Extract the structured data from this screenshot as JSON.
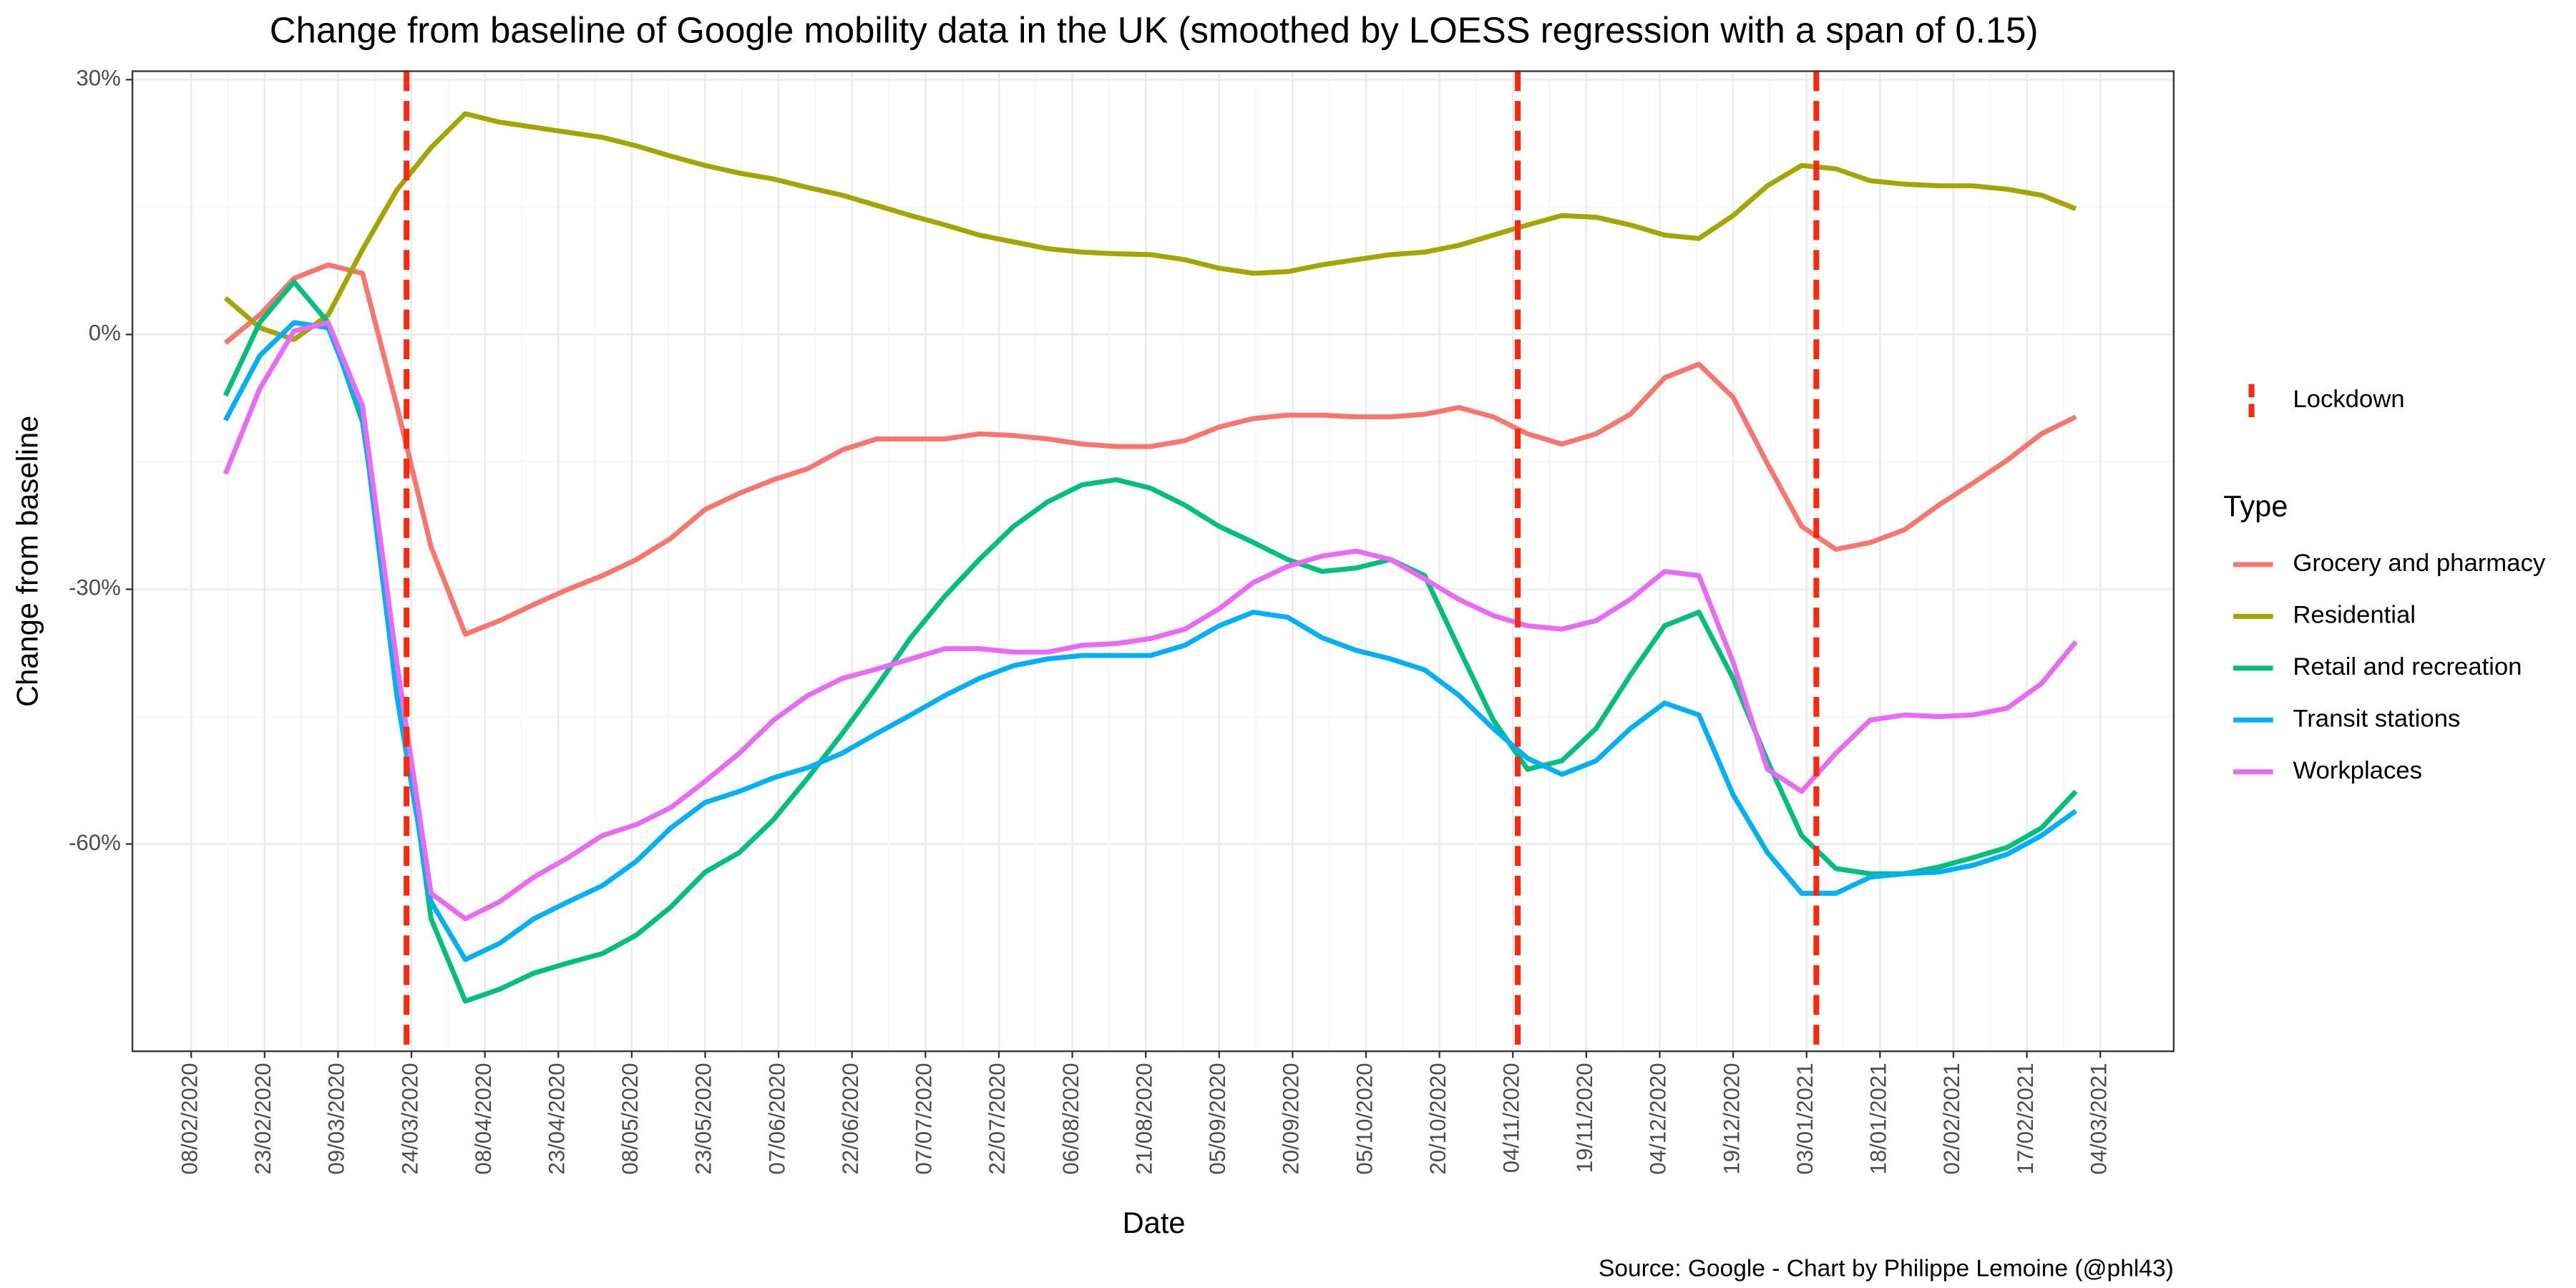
{
  "chart_data": {
    "type": "line",
    "title": "Change from baseline of Google mobility data in the UK (smoothed by LOESS regression with a span of 0.15)",
    "x_label": "Date",
    "y_label": "Change from baseline",
    "legend_title": "Type",
    "source": "Source: Google - Chart by Philippe Lemoine (@phl43)",
    "grid": true,
    "legend_position": "right",
    "x": [
      "15/02/2020",
      "22/02/2020",
      "29/02/2020",
      "07/03/2020",
      "14/03/2020",
      "21/03/2020",
      "28/03/2020",
      "04/04/2020",
      "11/04/2020",
      "18/04/2020",
      "25/04/2020",
      "02/05/2020",
      "09/05/2020",
      "16/05/2020",
      "23/05/2020",
      "30/05/2020",
      "06/06/2020",
      "13/06/2020",
      "20/06/2020",
      "27/06/2020",
      "04/07/2020",
      "11/07/2020",
      "18/07/2020",
      "25/07/2020",
      "01/08/2020",
      "08/08/2020",
      "15/08/2020",
      "22/08/2020",
      "29/08/2020",
      "05/09/2020",
      "12/09/2020",
      "19/09/2020",
      "26/09/2020",
      "03/10/2020",
      "10/10/2020",
      "17/10/2020",
      "24/10/2020",
      "31/10/2020",
      "07/11/2020",
      "14/11/2020",
      "21/11/2020",
      "28/11/2020",
      "05/12/2020",
      "12/12/2020",
      "19/12/2020",
      "26/12/2020",
      "02/01/2021",
      "09/01/2021",
      "16/01/2021",
      "23/01/2021",
      "30/01/2021",
      "06/02/2021",
      "13/02/2021",
      "20/02/2021",
      "27/02/2021"
    ],
    "xlim": [
      "27/01/2020",
      "19/03/2021"
    ],
    "xticks": [
      "08/02/2020",
      "23/02/2020",
      "09/03/2020",
      "24/03/2020",
      "08/04/2020",
      "23/04/2020",
      "08/05/2020",
      "23/05/2020",
      "07/06/2020",
      "22/06/2020",
      "07/07/2020",
      "22/07/2020",
      "06/08/2020",
      "21/08/2020",
      "05/09/2020",
      "20/09/2020",
      "05/10/2020",
      "20/10/2020",
      "04/11/2020",
      "19/11/2020",
      "04/12/2020",
      "19/12/2020",
      "03/01/2021",
      "18/01/2021",
      "02/02/2021",
      "17/02/2021",
      "04/03/2021"
    ],
    "ylim": [
      -84.4,
      31
    ],
    "yticks": [
      {
        "value": -60,
        "label": "-60%"
      },
      {
        "value": -30,
        "label": "-30%"
      },
      {
        "value": 0,
        "label": "0%"
      },
      {
        "value": 30,
        "label": "30%"
      }
    ],
    "lockdown": {
      "name": "Lockdown",
      "color": "#f8290e",
      "x": [
        "23/03/2020",
        "05/11/2020",
        "05/01/2021"
      ]
    },
    "series": [
      {
        "name": "Grocery and pharmacy",
        "color": "#f8766d",
        "values": [
          -1,
          2.3,
          6.6,
          8.2,
          7.2,
          -8.4,
          -25,
          -35.3,
          -33.7,
          -31.8,
          -30,
          -28.4,
          -26.5,
          -24,
          -20.6,
          -18.7,
          -17.1,
          -15.8,
          -13.6,
          -12.3,
          -12.3,
          -12.3,
          -11.7,
          -11.9,
          -12.3,
          -12.9,
          -13.2,
          -13.2,
          -12.5,
          -10.9,
          -9.9,
          -9.5,
          -9.5,
          -9.7,
          -9.7,
          -9.4,
          -8.6,
          -9.7,
          -11.7,
          -12.9,
          -11.7,
          -9.4,
          -5.1,
          -3.5,
          -7.4,
          -15.2,
          -22.6,
          -25.3,
          -24.5,
          -23,
          -20.1,
          -17.5,
          -14.8,
          -11.7,
          -9.7
        ]
      },
      {
        "name": "Residential",
        "color": "#a3a500",
        "values": [
          4.3,
          0.8,
          -0.6,
          2.3,
          10,
          17,
          22,
          26,
          25,
          24.4,
          23.8,
          23.2,
          22.2,
          21,
          19.9,
          19,
          18.3,
          17.3,
          16.4,
          15.2,
          14,
          12.9,
          11.7,
          10.9,
          10.1,
          9.7,
          9.5,
          9.4,
          8.8,
          7.8,
          7.2,
          7.4,
          8.2,
          8.8,
          9.4,
          9.7,
          10.5,
          11.7,
          12.9,
          14,
          13.8,
          12.9,
          11.7,
          11.3,
          14,
          17.5,
          19.9,
          19.5,
          18.1,
          17.7,
          17.5,
          17.5,
          17.1,
          16.4,
          14.8
        ]
      },
      {
        "name": "Retail and recreation",
        "color": "#00bf7d",
        "values": [
          -7.2,
          1.4,
          6.2,
          1.4,
          -10.3,
          -38.6,
          -68.8,
          -78.5,
          -77.1,
          -75.2,
          -74,
          -72.9,
          -70.7,
          -67.4,
          -63.3,
          -61,
          -57.1,
          -52.2,
          -47,
          -41.5,
          -35.7,
          -30.8,
          -26.5,
          -22.6,
          -19.7,
          -17.7,
          -17.1,
          -18.1,
          -20.1,
          -22.6,
          -24.5,
          -26.5,
          -27.9,
          -27.5,
          -26.5,
          -28.4,
          -37,
          -45.4,
          -51.2,
          -50.2,
          -46.4,
          -40.1,
          -34.3,
          -32.7,
          -40.5,
          -50.2,
          -59,
          -62.9,
          -63.5,
          -63.5,
          -62.7,
          -61.6,
          -60.4,
          -58.1,
          -53.8
        ]
      },
      {
        "name": "Transit stations",
        "color": "#00b0f6",
        "values": [
          -10.1,
          -2.5,
          1.4,
          0.8,
          -9.4,
          -42.5,
          -66.8,
          -73.6,
          -71.7,
          -68.8,
          -66.8,
          -64.9,
          -62,
          -58.1,
          -55.1,
          -53.8,
          -52.2,
          -51,
          -49.3,
          -47,
          -44.8,
          -42.5,
          -40.5,
          -39,
          -38.2,
          -37.8,
          -37.8,
          -37.8,
          -36.6,
          -34.3,
          -32.7,
          -33.3,
          -35.7,
          -37.2,
          -38.2,
          -39.5,
          -42.5,
          -46.4,
          -49.9,
          -51.8,
          -50.2,
          -46.4,
          -43.4,
          -44.8,
          -54.2,
          -61,
          -65.8,
          -65.8,
          -63.9,
          -63.5,
          -63.3,
          -62.5,
          -61.2,
          -59,
          -56.1
        ]
      },
      {
        "name": "Workplaces",
        "color": "#e76bf3",
        "values": [
          -16.4,
          -6.4,
          0.4,
          1.4,
          -8.4,
          -38.6,
          -65.8,
          -68.8,
          -66.8,
          -63.9,
          -61.6,
          -59,
          -57.7,
          -55.7,
          -52.6,
          -49.3,
          -45.4,
          -42.5,
          -40.5,
          -39.4,
          -38.2,
          -37,
          -37,
          -37.4,
          -37.4,
          -36.6,
          -36.4,
          -35.8,
          -34.7,
          -32.3,
          -29.2,
          -27.3,
          -26.1,
          -25.5,
          -26.5,
          -28.8,
          -31.2,
          -33.1,
          -34.3,
          -34.7,
          -33.7,
          -31.2,
          -27.9,
          -28.4,
          -38.6,
          -51.2,
          -53.8,
          -49.3,
          -45.4,
          -44.8,
          -45,
          -44.8,
          -44,
          -41.1,
          -36.2
        ]
      }
    ]
  }
}
